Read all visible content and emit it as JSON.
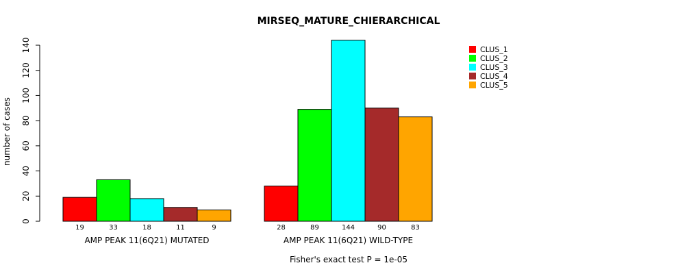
{
  "chart_data": {
    "type": "bar",
    "title": "MIRSEQ_MATURE_CHIERARCHICAL",
    "ylabel": "number of cases",
    "xlabel": "",
    "ylim": [
      0,
      140
    ],
    "yticks": [
      0,
      20,
      40,
      60,
      80,
      100,
      120,
      140
    ],
    "groups": [
      "AMP PEAK 11(6Q21) MUTATED",
      "AMP PEAK 11(6Q21) WILD-TYPE"
    ],
    "series": [
      {
        "name": "CLUS_1",
        "color": "#ff0000",
        "values": [
          19,
          28
        ]
      },
      {
        "name": "CLUS_2",
        "color": "#00ff00",
        "values": [
          33,
          89
        ]
      },
      {
        "name": "CLUS_3",
        "color": "#00ffff",
        "values": [
          18,
          144
        ]
      },
      {
        "name": "CLUS_4",
        "color": "#a52a2a",
        "values": [
          11,
          90
        ]
      },
      {
        "name": "CLUS_5",
        "color": "#ffa500",
        "values": [
          9,
          83
        ]
      }
    ],
    "legend_position": "top-right",
    "grid": false,
    "footnote": "Fisher's exact test P = 1e-05"
  }
}
